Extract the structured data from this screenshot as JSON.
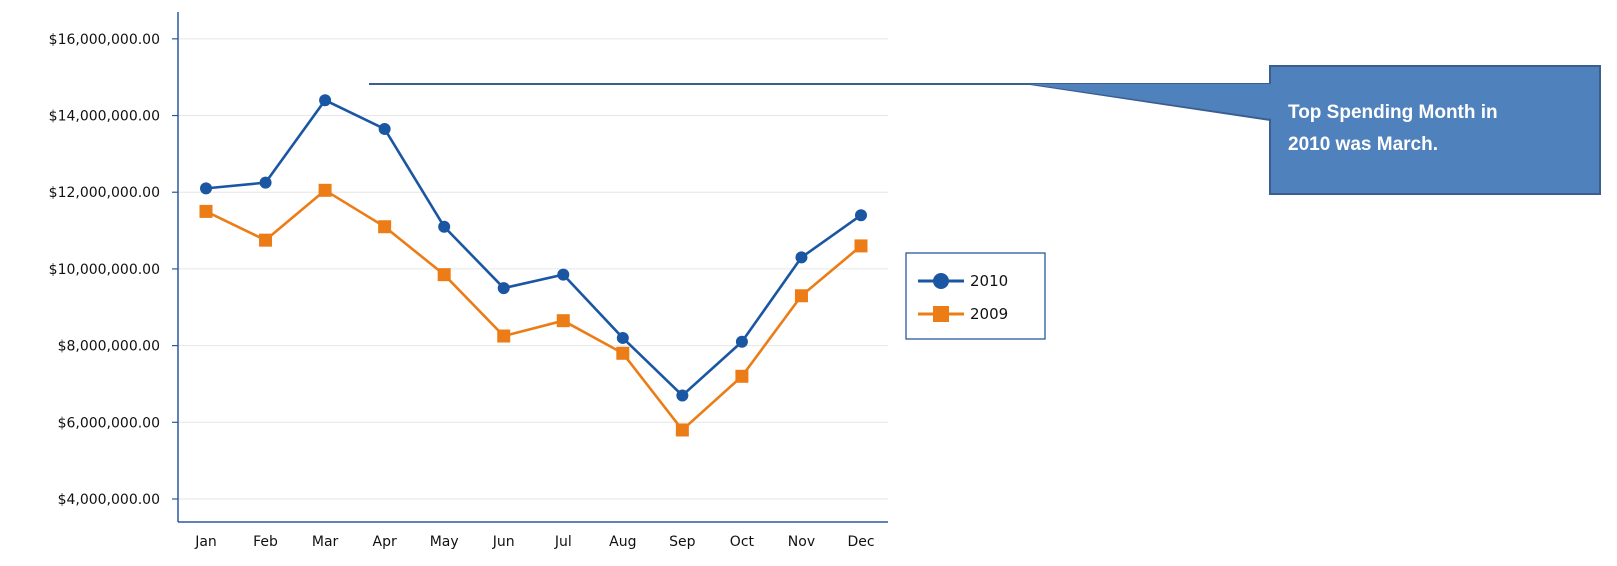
{
  "chart_data": {
    "type": "line",
    "title": "",
    "xlabel": "",
    "ylabel": "",
    "categories": [
      "Jan",
      "Feb",
      "Mar",
      "Apr",
      "May",
      "Jun",
      "Jul",
      "Aug",
      "Sep",
      "Oct",
      "Nov",
      "Dec"
    ],
    "y_ticks": [
      4000000,
      6000000,
      8000000,
      10000000,
      12000000,
      14000000,
      16000000
    ],
    "y_tick_labels": [
      "$4,000,000.00",
      "$6,000,000.00",
      "$8,000,000.00",
      "$10,000,000.00",
      "$12,000,000.00",
      "$14,000,000.00",
      "$16,000,000.00"
    ],
    "ylim": [
      3400000,
      16700000
    ],
    "grid": true,
    "legend_position": "right",
    "series": [
      {
        "name": "2010",
        "color": "#1a56a2",
        "marker": "circle",
        "values": [
          12100000,
          12250000,
          14400000,
          13650000,
          11100000,
          9500000,
          9850000,
          8200000,
          6700000,
          8100000,
          10300000,
          11400000
        ]
      },
      {
        "name": "2009",
        "color": "#ec7c16",
        "marker": "square",
        "values": [
          11500000,
          10750000,
          12050000,
          11100000,
          9850000,
          8250000,
          8650000,
          7800000,
          5800000,
          7200000,
          9300000,
          10600000
        ]
      }
    ],
    "annotation": {
      "text_lines": [
        "Top Spending Month in",
        "2010 was March."
      ],
      "box_color": "#4f81bd",
      "border_color": "#3a5f8f"
    }
  }
}
